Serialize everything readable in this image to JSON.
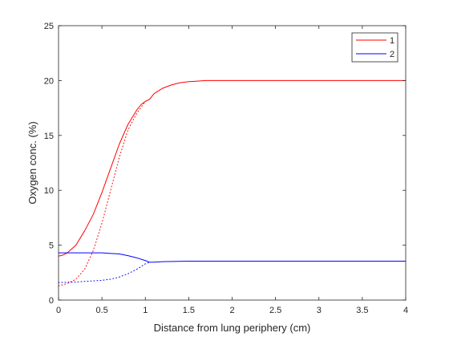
{
  "chart_data": {
    "type": "line",
    "xlabel": "Distance from lung periphery (cm)",
    "ylabel": "Oxygen conc. (%)",
    "xlim": [
      0,
      4
    ],
    "ylim": [
      0,
      25
    ],
    "xticks": [
      0,
      0.5,
      1,
      1.5,
      2,
      2.5,
      3,
      3.5,
      4
    ],
    "xtick_labels": [
      "0",
      "0.5",
      "1",
      "1.5",
      "2",
      "2.5",
      "3",
      "3.5",
      "4"
    ],
    "yticks": [
      0,
      5,
      10,
      15,
      20,
      25
    ],
    "ytick_labels": [
      "0",
      "5",
      "10",
      "15",
      "20",
      "25"
    ],
    "grid": false,
    "legend_position": "top-right",
    "series": [
      {
        "name": "1",
        "color": "#ff0000",
        "style": "solid",
        "x": [
          0,
          0.05,
          0.1,
          0.2,
          0.3,
          0.4,
          0.5,
          0.6,
          0.7,
          0.8,
          0.9,
          0.95,
          1.0,
          1.05,
          1.1,
          1.2,
          1.3,
          1.4,
          1.5,
          1.6,
          1.7,
          1.8,
          2.0,
          2.5,
          3.0,
          3.5,
          4.0
        ],
        "y": [
          4.0,
          4.1,
          4.3,
          5.0,
          6.3,
          7.8,
          9.8,
          12.0,
          14.2,
          16.0,
          17.3,
          17.8,
          18.1,
          18.3,
          18.8,
          19.3,
          19.6,
          19.8,
          19.9,
          19.95,
          20.0,
          20.0,
          20.0,
          20.0,
          20.0,
          20.0,
          20.0
        ]
      },
      {
        "name": "",
        "color": "#ff0000",
        "style": "dotted",
        "x": [
          0,
          0.1,
          0.2,
          0.3,
          0.4,
          0.5,
          0.6,
          0.7,
          0.8,
          0.9,
          1.0,
          1.05
        ],
        "y": [
          1.3,
          1.5,
          1.9,
          2.8,
          4.5,
          7.0,
          10.0,
          13.0,
          15.5,
          17.0,
          18.1,
          18.3
        ]
      },
      {
        "name": "2",
        "color": "#0000ff",
        "style": "solid",
        "x": [
          0,
          0.2,
          0.4,
          0.5,
          0.6,
          0.7,
          0.8,
          0.9,
          1.0,
          1.05,
          1.1,
          1.2,
          1.5,
          2.0,
          2.5,
          3.0,
          3.5,
          4.0
        ],
        "y": [
          4.3,
          4.3,
          4.3,
          4.3,
          4.25,
          4.2,
          4.05,
          3.85,
          3.6,
          3.45,
          3.45,
          3.5,
          3.55,
          3.55,
          3.55,
          3.55,
          3.55,
          3.55
        ]
      },
      {
        "name": "",
        "color": "#0000ff",
        "style": "dotted",
        "x": [
          0,
          0.2,
          0.4,
          0.5,
          0.6,
          0.7,
          0.8,
          0.9,
          1.0,
          1.05
        ],
        "y": [
          1.6,
          1.65,
          1.75,
          1.8,
          1.9,
          2.1,
          2.4,
          2.8,
          3.3,
          3.45
        ]
      }
    ]
  }
}
